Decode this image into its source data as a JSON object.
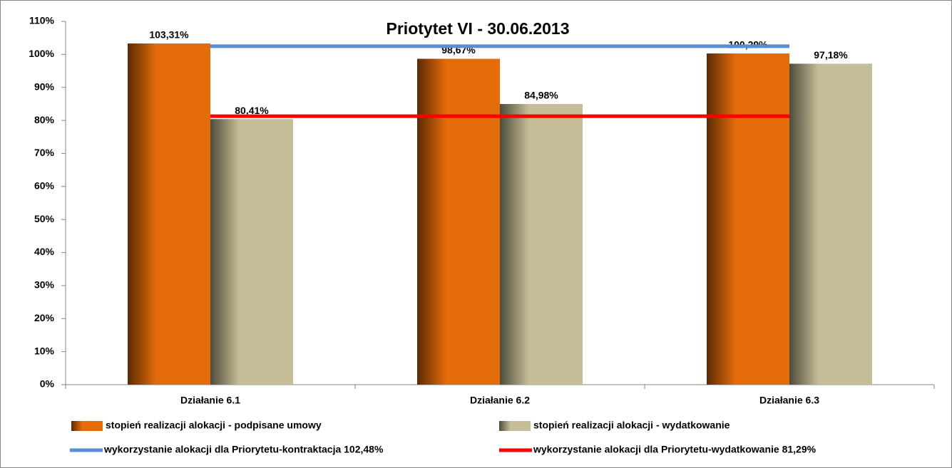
{
  "chart_data": {
    "type": "bar",
    "title": "Priotytet VI - 30.06.2013",
    "categories": [
      "Działanie  6.1",
      "Działanie  6.2",
      "Działanie  6.3"
    ],
    "series": [
      {
        "name": "stopień realizacji alokacji - podpisane umowy",
        "color": "#e46c0a",
        "type": "bar",
        "values": [
          103.31,
          98.67,
          100.29
        ],
        "value_labels": [
          "103,31%",
          "98,67%",
          "100,29%"
        ]
      },
      {
        "name": "stopień realizacji alokacji - wydatkowanie",
        "color": "#c4bd97",
        "type": "bar",
        "values": [
          80.41,
          84.98,
          97.18
        ],
        "value_labels": [
          "80,41%",
          "84,98%",
          "97,18%"
        ]
      },
      {
        "name": "wykorzystanie alokacji dla Priorytetu-kontraktacja  102,48%",
        "color": "#558ed5",
        "type": "line",
        "values": [
          102.48,
          102.48,
          102.48
        ]
      },
      {
        "name": "wykorzystanie alokacji dla Priorytetu-wydatkowanie  81,29%",
        "color": "#ff0000",
        "type": "line",
        "values": [
          81.29,
          81.29,
          81.29
        ]
      }
    ],
    "ylim": [
      0,
      110
    ],
    "yticks": [
      {
        "value": 0,
        "label": "0%"
      },
      {
        "value": 10,
        "label": "10%"
      },
      {
        "value": 20,
        "label": "20%"
      },
      {
        "value": 30,
        "label": "30%"
      },
      {
        "value": 40,
        "label": "40%"
      },
      {
        "value": 50,
        "label": "50%"
      },
      {
        "value": 60,
        "label": "60%"
      },
      {
        "value": 70,
        "label": "70%"
      },
      {
        "value": 80,
        "label": "80%"
      },
      {
        "value": 90,
        "label": "90%"
      },
      {
        "value": 100,
        "label": "100%"
      },
      {
        "value": 110,
        "label": "110%"
      }
    ],
    "grid": false,
    "legend": "bottom"
  }
}
